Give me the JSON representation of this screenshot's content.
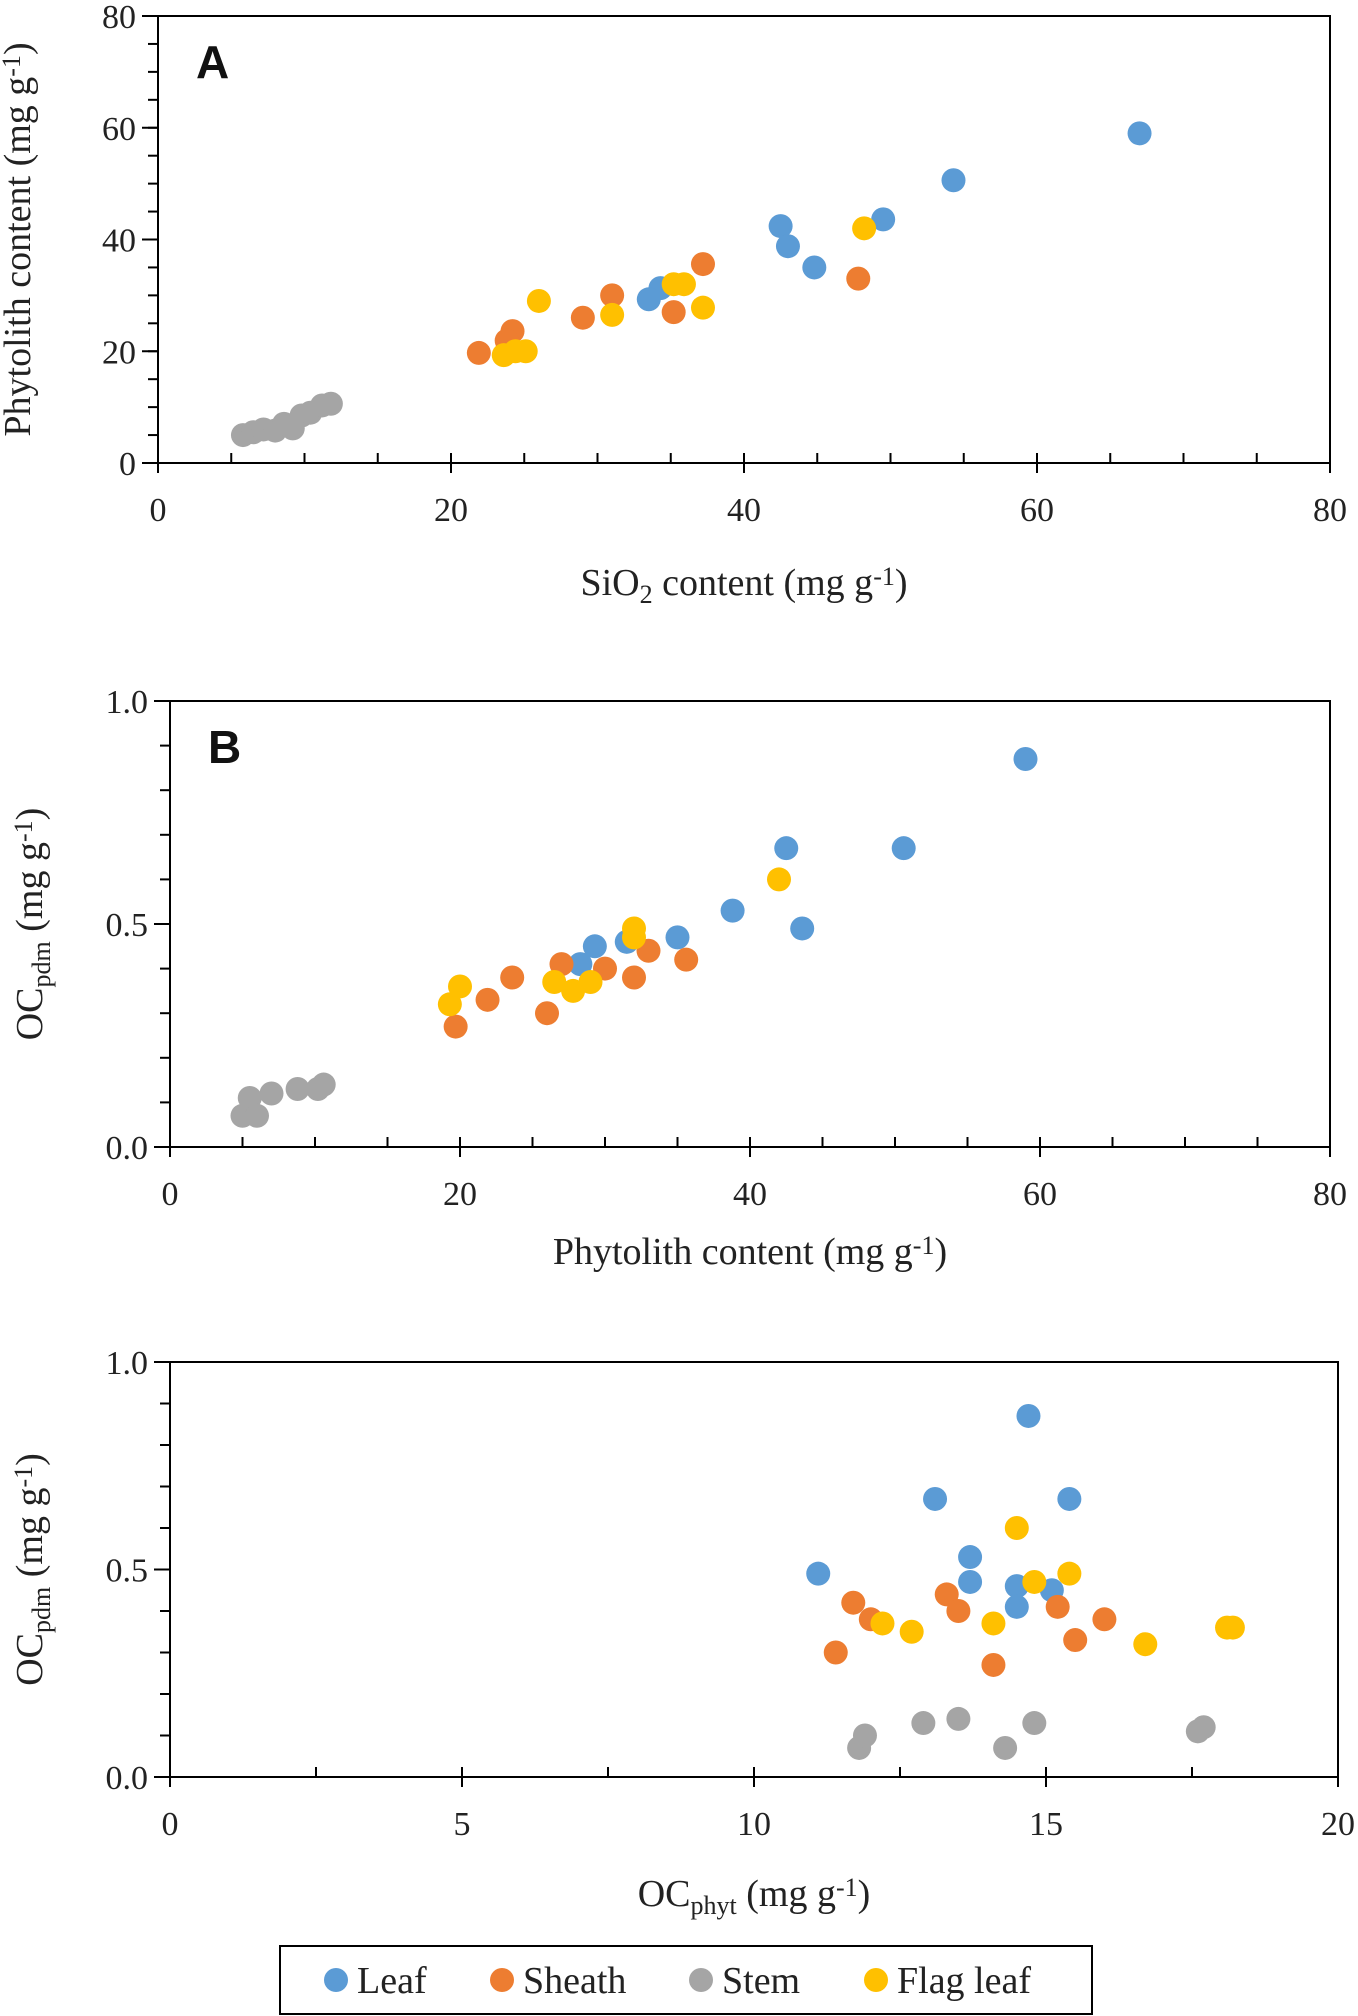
{
  "legend": [
    {
      "key": "leaf",
      "label": "Leaf",
      "color": "#5b9bd5"
    },
    {
      "key": "sheath",
      "label": "Sheath",
      "color": "#ed7d31"
    },
    {
      "key": "stem",
      "label": "Stem",
      "color": "#a5a5a5"
    },
    {
      "key": "flag",
      "label": "Flag leaf",
      "color": "#ffc000"
    }
  ],
  "chart_data": [
    {
      "id": "A",
      "type": "scatter",
      "panel_label": "A",
      "xlabel": {
        "main": "SiO",
        "sub": "2",
        "rest": " content (mg g",
        "sup": "-1",
        "end": ")"
      },
      "ylabel": {
        "main": "Phytolith content (mg g",
        "sub": "",
        "rest": "",
        "sup": "-1",
        "end": ")"
      },
      "xlim": [
        0,
        80
      ],
      "ylim": [
        0,
        80
      ],
      "xticks": [
        "0",
        "20",
        "40",
        "60",
        "80"
      ],
      "yticks": [
        "0",
        "20",
        "40",
        "60",
        "80"
      ],
      "xtick_values": [
        0,
        20,
        40,
        60,
        80
      ],
      "ytick_values": [
        0,
        20,
        40,
        60,
        80
      ],
      "xminor": 5,
      "yminor": 5,
      "series": [
        {
          "name": "Leaf",
          "key": "leaf",
          "points": [
            [
              67,
              59
            ],
            [
              54.3,
              50.6
            ],
            [
              49.5,
              43.6
            ],
            [
              42.5,
              42.4
            ],
            [
              43,
              38.8
            ],
            [
              44.8,
              35
            ],
            [
              34.3,
              31.3
            ],
            [
              33.5,
              29.3
            ]
          ]
        },
        {
          "name": "Sheath",
          "key": "sheath",
          "points": [
            [
              37.2,
              35.6
            ],
            [
              47.8,
              33
            ],
            [
              31,
              30
            ],
            [
              24.2,
              23.6
            ],
            [
              23.8,
              21.9
            ],
            [
              29,
              26
            ],
            [
              35.2,
              27
            ],
            [
              21.9,
              19.7
            ]
          ]
        },
        {
          "name": "Stem",
          "key": "stem",
          "points": [
            [
              5.8,
              5
            ],
            [
              6.5,
              5.5
            ],
            [
              7.2,
              6
            ],
            [
              8,
              5.8
            ],
            [
              8.6,
              7
            ],
            [
              9.2,
              6.2
            ],
            [
              9.8,
              8.5
            ],
            [
              10.4,
              9
            ],
            [
              11.2,
              10.3
            ],
            [
              11.8,
              10.6
            ]
          ]
        },
        {
          "name": "Flag leaf",
          "key": "flag",
          "points": [
            [
              48.2,
              42
            ],
            [
              26,
              29
            ],
            [
              31,
              26.5
            ],
            [
              35.2,
              32
            ],
            [
              35.9,
              32
            ],
            [
              37.2,
              27.8
            ],
            [
              23.6,
              19.3
            ],
            [
              24.4,
              20
            ],
            [
              25.1,
              20
            ]
          ]
        }
      ]
    },
    {
      "id": "B",
      "type": "scatter",
      "panel_label": "B",
      "xlabel": {
        "main": "Phytolith content (mg g",
        "sub": "",
        "rest": "",
        "sup": "-1",
        "end": ")"
      },
      "ylabel": {
        "main": "OC",
        "sub": "pdm",
        "rest": " (mg g",
        "sup": "-1",
        "end": ")"
      },
      "xlim": [
        0,
        80
      ],
      "ylim": [
        0,
        1
      ],
      "xticks": [
        "0",
        "20",
        "40",
        "60",
        "80"
      ],
      "yticks": [
        "0.0",
        "0.5",
        "1.0"
      ],
      "xtick_values": [
        0,
        20,
        40,
        60,
        80
      ],
      "ytick_values": [
        0,
        0.5,
        1
      ],
      "xminor": 5,
      "yminor": 0.1,
      "series": [
        {
          "name": "Leaf",
          "key": "leaf",
          "points": [
            [
              59,
              0.87
            ],
            [
              42.5,
              0.67
            ],
            [
              50.6,
              0.67
            ],
            [
              38.8,
              0.53
            ],
            [
              35,
              0.47
            ],
            [
              43.6,
              0.49
            ],
            [
              31.5,
              0.46
            ],
            [
              29.3,
              0.45
            ],
            [
              28.3,
              0.41
            ]
          ]
        },
        {
          "name": "Sheath",
          "key": "sheath",
          "points": [
            [
              19.7,
              0.27
            ],
            [
              21.9,
              0.33
            ],
            [
              23.6,
              0.38
            ],
            [
              26,
              0.3
            ],
            [
              27,
              0.41
            ],
            [
              30,
              0.4
            ],
            [
              32,
              0.38
            ],
            [
              33,
              0.44
            ],
            [
              35.6,
              0.42
            ]
          ]
        },
        {
          "name": "Stem",
          "key": "stem",
          "points": [
            [
              5,
              0.07
            ],
            [
              5.5,
              0.11
            ],
            [
              6,
              0.07
            ],
            [
              7,
              0.12
            ],
            [
              8.8,
              0.13
            ],
            [
              10.2,
              0.13
            ],
            [
              10.6,
              0.14
            ]
          ]
        },
        {
          "name": "Flag leaf",
          "key": "flag",
          "points": [
            [
              42,
              0.6
            ],
            [
              32,
              0.49
            ],
            [
              32,
              0.47
            ],
            [
              19.3,
              0.32
            ],
            [
              20,
              0.36
            ],
            [
              26.5,
              0.37
            ],
            [
              27.8,
              0.35
            ],
            [
              29,
              0.37
            ]
          ]
        }
      ]
    },
    {
      "id": "C",
      "type": "scatter",
      "panel_label": "",
      "xlabel": {
        "main": "OC",
        "sub": "phyt",
        "rest": " (mg g",
        "sup": "-1",
        "end": ")"
      },
      "ylabel": {
        "main": "OC",
        "sub": "pdm",
        "rest": " (mg g",
        "sup": "-1",
        "end": ")"
      },
      "xlim": [
        0,
        20
      ],
      "ylim": [
        0,
        1
      ],
      "xticks": [
        "0",
        "5",
        "10",
        "15",
        "20"
      ],
      "yticks": [
        "0.0",
        "0.5",
        "1.0"
      ],
      "xtick_values": [
        0,
        5,
        10,
        15,
        20
      ],
      "ytick_values": [
        0,
        0.5,
        1
      ],
      "xminor": 2.5,
      "yminor": 0.1,
      "series": [
        {
          "name": "Leaf",
          "key": "leaf",
          "points": [
            [
              14.7,
              0.87
            ],
            [
              13.1,
              0.67
            ],
            [
              15.4,
              0.67
            ],
            [
              13.7,
              0.53
            ],
            [
              13.7,
              0.47
            ],
            [
              11.1,
              0.49
            ],
            [
              14.5,
              0.46
            ],
            [
              15.1,
              0.45
            ],
            [
              14.5,
              0.41
            ]
          ]
        },
        {
          "name": "Sheath",
          "key": "sheath",
          "points": [
            [
              11.7,
              0.42
            ],
            [
              12,
              0.38
            ],
            [
              13.3,
              0.44
            ],
            [
              13.5,
              0.4
            ],
            [
              15.2,
              0.41
            ],
            [
              16,
              0.38
            ],
            [
              15.5,
              0.33
            ],
            [
              11.4,
              0.3
            ],
            [
              14.1,
              0.27
            ]
          ]
        },
        {
          "name": "Stem",
          "key": "stem",
          "points": [
            [
              11.8,
              0.07
            ],
            [
              11.9,
              0.1
            ],
            [
              12.9,
              0.13
            ],
            [
              13.5,
              0.14
            ],
            [
              14.3,
              0.07
            ],
            [
              14.8,
              0.13
            ],
            [
              17.6,
              0.11
            ],
            [
              17.7,
              0.12
            ]
          ]
        },
        {
          "name": "Flag leaf",
          "key": "flag",
          "points": [
            [
              14.5,
              0.6
            ],
            [
              15.4,
              0.49
            ],
            [
              14.8,
              0.47
            ],
            [
              12.2,
              0.37
            ],
            [
              12.7,
              0.35
            ],
            [
              14.1,
              0.37
            ],
            [
              16.7,
              0.32
            ],
            [
              18.1,
              0.36
            ],
            [
              18.2,
              0.36
            ]
          ]
        }
      ]
    }
  ]
}
